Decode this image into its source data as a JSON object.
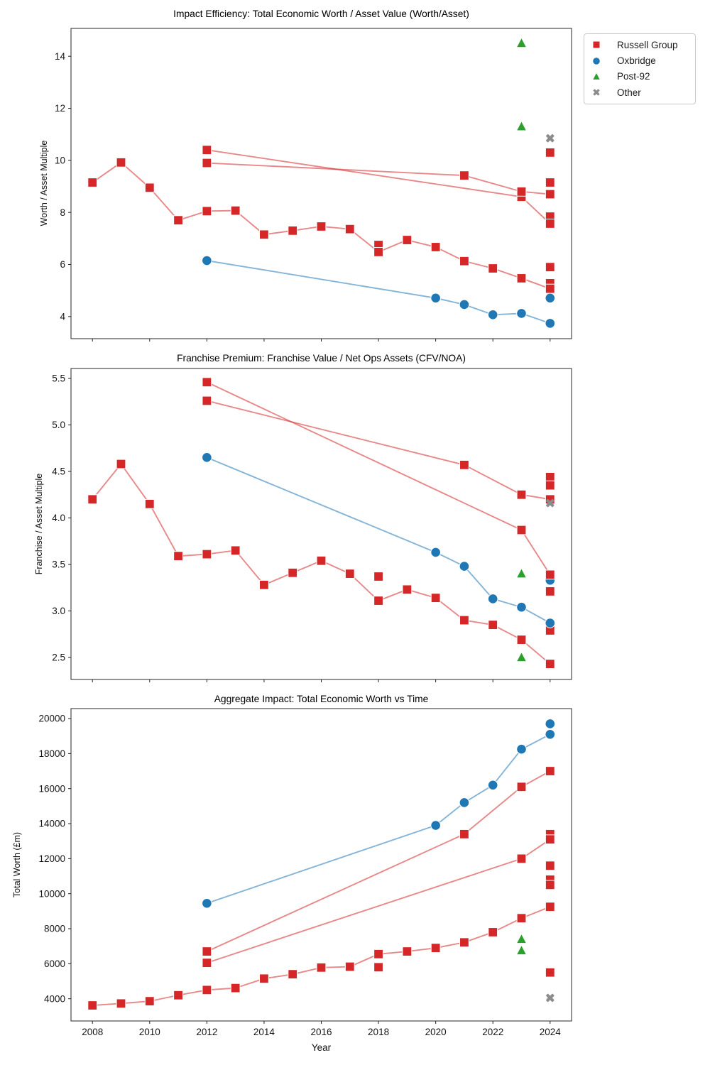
{
  "figure": {
    "background": "#ffffff"
  },
  "legend": {
    "position": "outside-top-right",
    "items": [
      {
        "label": "Russell Group",
        "marker": "square",
        "color": "#d62728"
      },
      {
        "label": "Oxbridge",
        "marker": "circle",
        "color": "#1f77b4"
      },
      {
        "label": "Post-92",
        "marker": "triangle",
        "color": "#2ca02c"
      },
      {
        "label": "Other",
        "marker": "x",
        "color": "#8c8c8c"
      }
    ]
  },
  "chart_data": [
    {
      "id": "worth-asset-multiple",
      "type": "line",
      "title": "Impact Efficiency: Total Economic Worth / Asset Value (Worth/Asset)",
      "xlabel": "",
      "ylabel": "Worth / Asset Multiple",
      "grid": false,
      "xlim": [
        2007.25,
        2024.75
      ],
      "ylim": [
        3.15,
        15.07
      ],
      "xticks": [
        2008,
        2010,
        2012,
        2014,
        2016,
        2018,
        2020,
        2022,
        2024
      ],
      "xtick_labels": [],
      "ytick_values": [
        4,
        6,
        8,
        10,
        12,
        14
      ],
      "ytick_labels": [
        "4",
        "6",
        "8",
        "10",
        "12",
        "14"
      ],
      "series": [
        {
          "name": "russell-group-a",
          "group": "Russell Group",
          "marker": "square",
          "color": "#d62728",
          "line": true,
          "line_color": "rgba(214,39,40,0.55)",
          "marker_z": 2,
          "x": [
            2008,
            2009,
            2010,
            2011,
            2012,
            2013,
            2014,
            2015,
            2016,
            2017,
            2018,
            2019,
            2020,
            2021,
            2022,
            2023,
            2024
          ],
          "y": [
            9.15,
            9.92,
            8.95,
            7.7,
            8.05,
            8.07,
            7.15,
            7.3,
            7.46,
            7.36,
            6.48,
            6.94,
            6.67,
            6.13,
            5.85,
            5.47,
            5.07
          ]
        },
        {
          "name": "russell-group-b",
          "group": "Russell Group",
          "marker": "square",
          "color": "#d62728",
          "line": true,
          "line_color": "rgba(214,39,40,0.55)",
          "marker_z": 2,
          "x": [
            2012,
            2023,
            2024
          ],
          "y": [
            10.4,
            8.6,
            7.57
          ]
        },
        {
          "name": "russell-group-c",
          "group": "Russell Group",
          "marker": "square",
          "color": "#d62728",
          "line": true,
          "line_color": "rgba(214,39,40,0.55)",
          "marker_z": 2,
          "x": [
            2012,
            2021,
            2023,
            2024
          ],
          "y": [
            9.9,
            9.42,
            8.8,
            8.7
          ]
        },
        {
          "name": "oxbridge-line",
          "group": "Oxbridge",
          "marker": "circle",
          "color": "#1f77b4",
          "line": true,
          "line_color": "rgba(31,119,180,0.55)",
          "marker_z": 2,
          "x": [
            2012,
            2020,
            2021,
            2022,
            2023,
            2024
          ],
          "y": [
            6.15,
            4.71,
            4.46,
            4.07,
            4.12,
            3.74
          ]
        },
        {
          "name": "russell-group-points",
          "group": "Russell Group",
          "marker": "square",
          "color": "#d62728",
          "line": false,
          "marker_z": 1,
          "x": [
            2018,
            2024,
            2024,
            2024,
            2024,
            2024
          ],
          "y": [
            6.75,
            10.3,
            9.15,
            7.84,
            5.9,
            5.28
          ]
        },
        {
          "name": "oxbridge-points",
          "group": "Oxbridge",
          "marker": "circle",
          "color": "#1f77b4",
          "line": false,
          "marker_z": 1,
          "x": [
            2024
          ],
          "y": [
            4.71
          ]
        },
        {
          "name": "post92-points",
          "group": "Post-92",
          "marker": "triangle",
          "color": "#2ca02c",
          "line": false,
          "marker_z": 3,
          "x": [
            2023,
            2023
          ],
          "y": [
            14.5,
            11.3
          ]
        },
        {
          "name": "other-points",
          "group": "Other",
          "marker": "x",
          "color": "#8c8c8c",
          "line": false,
          "marker_z": 4,
          "x": [
            2024
          ],
          "y": [
            10.85
          ]
        }
      ]
    },
    {
      "id": "franchise-asset-multiple",
      "type": "line",
      "title": "Franchise Premium: Franchise Value / Net Ops Assets (CFV/NOA)",
      "xlabel": "",
      "ylabel": "Franchise / Asset Multiple",
      "grid": false,
      "xlim": [
        2007.25,
        2024.75
      ],
      "ylim": [
        2.263,
        5.607
      ],
      "xticks": [
        2008,
        2010,
        2012,
        2014,
        2016,
        2018,
        2020,
        2022,
        2024
      ],
      "xtick_labels": [],
      "ytick_values": [
        2.5,
        3.0,
        3.5,
        4.0,
        4.5,
        5.0,
        5.5
      ],
      "ytick_labels": [
        "2.5",
        "3.0",
        "3.5",
        "4.0",
        "4.5",
        "5.0",
        "5.5"
      ],
      "series": [
        {
          "name": "russell-group-a",
          "group": "Russell Group",
          "marker": "square",
          "color": "#d62728",
          "line": true,
          "line_color": "rgba(214,39,40,0.55)",
          "marker_z": 2,
          "x": [
            2008,
            2009,
            2010,
            2011,
            2012,
            2013,
            2014,
            2015,
            2016,
            2017,
            2018,
            2019,
            2020,
            2021,
            2022,
            2023,
            2024
          ],
          "y": [
            4.2,
            4.58,
            4.15,
            3.59,
            3.61,
            3.65,
            3.28,
            3.41,
            3.54,
            3.4,
            3.11,
            3.23,
            3.14,
            2.9,
            2.85,
            2.69,
            2.43
          ]
        },
        {
          "name": "russell-group-b",
          "group": "Russell Group",
          "marker": "square",
          "color": "#d62728",
          "line": true,
          "line_color": "rgba(214,39,40,0.55)",
          "marker_z": 2,
          "x": [
            2012,
            2023,
            2024
          ],
          "y": [
            5.46,
            3.87,
            3.39
          ]
        },
        {
          "name": "russell-group-c",
          "group": "Russell Group",
          "marker": "square",
          "color": "#d62728",
          "line": true,
          "line_color": "rgba(214,39,40,0.55)",
          "marker_z": 2,
          "x": [
            2012,
            2021,
            2023,
            2024
          ],
          "y": [
            5.26,
            4.57,
            4.25,
            4.2
          ]
        },
        {
          "name": "oxbridge-line",
          "group": "Oxbridge",
          "marker": "circle",
          "color": "#1f77b4",
          "line": true,
          "line_color": "rgba(31,119,180,0.55)",
          "marker_z": 2,
          "x": [
            2012,
            2020,
            2021,
            2022,
            2023,
            2024
          ],
          "y": [
            4.65,
            3.63,
            3.48,
            3.13,
            3.04,
            2.87
          ]
        },
        {
          "name": "russell-group-points",
          "group": "Russell Group",
          "marker": "square",
          "color": "#d62728",
          "line": false,
          "marker_z": 1,
          "x": [
            2018,
            2024,
            2024,
            2024,
            2024
          ],
          "y": [
            3.37,
            4.44,
            4.35,
            3.21,
            2.79
          ]
        },
        {
          "name": "oxbridge-points",
          "group": "Oxbridge",
          "marker": "circle",
          "color": "#1f77b4",
          "line": false,
          "marker_z": 1,
          "x": [
            2024
          ],
          "y": [
            3.33
          ]
        },
        {
          "name": "post92-points",
          "group": "Post-92",
          "marker": "triangle",
          "color": "#2ca02c",
          "line": false,
          "marker_z": 3,
          "x": [
            2023,
            2023
          ],
          "y": [
            3.4,
            2.5
          ]
        },
        {
          "name": "other-points",
          "group": "Other",
          "marker": "x",
          "color": "#8c8c8c",
          "line": false,
          "marker_z": 4,
          "x": [
            2024
          ],
          "y": [
            4.16
          ]
        }
      ]
    },
    {
      "id": "total-economic-worth",
      "type": "line",
      "title": "Aggregate Impact: Total Economic Worth vs Time",
      "xlabel": "Year",
      "ylabel": "Total Worth (£m)",
      "grid": false,
      "xlim": [
        2007.25,
        2024.75
      ],
      "ylim": [
        2730,
        20570
      ],
      "xticks": [
        2008,
        2010,
        2012,
        2014,
        2016,
        2018,
        2020,
        2022,
        2024
      ],
      "xtick_labels": [
        "2008",
        "2010",
        "2012",
        "2014",
        "2016",
        "2018",
        "2020",
        "2022",
        "2024"
      ],
      "ytick_values": [
        4000,
        6000,
        8000,
        10000,
        12000,
        14000,
        16000,
        18000,
        20000
      ],
      "ytick_labels": [
        "4000",
        "6000",
        "8000",
        "10000",
        "12000",
        "14000",
        "16000",
        "18000",
        "20000"
      ],
      "series": [
        {
          "name": "russell-group-a",
          "group": "Russell Group",
          "marker": "square",
          "color": "#d62728",
          "line": true,
          "line_color": "rgba(214,39,40,0.55)",
          "marker_z": 2,
          "x": [
            2008,
            2009,
            2010,
            2011,
            2012,
            2013,
            2014,
            2015,
            2016,
            2017,
            2018,
            2019,
            2020,
            2021,
            2022,
            2023,
            2024
          ],
          "y": [
            3620,
            3730,
            3860,
            4200,
            4500,
            4610,
            5150,
            5400,
            5780,
            5830,
            6550,
            6700,
            6900,
            7220,
            7800,
            8600,
            9250
          ]
        },
        {
          "name": "russell-group-b",
          "group": "Russell Group",
          "marker": "square",
          "color": "#d62728",
          "line": true,
          "line_color": "rgba(214,39,40,0.55)",
          "marker_z": 2,
          "x": [
            2012,
            2023,
            2024
          ],
          "y": [
            6050,
            12000,
            13100
          ]
        },
        {
          "name": "russell-group-c",
          "group": "Russell Group",
          "marker": "square",
          "color": "#d62728",
          "line": true,
          "line_color": "rgba(214,39,40,0.55)",
          "marker_z": 2,
          "x": [
            2012,
            2021,
            2023,
            2024
          ],
          "y": [
            6700,
            13400,
            16100,
            17000
          ]
        },
        {
          "name": "oxbridge-line",
          "group": "Oxbridge",
          "marker": "circle",
          "color": "#1f77b4",
          "line": true,
          "line_color": "rgba(31,119,180,0.55)",
          "marker_z": 2,
          "x": [
            2012,
            2020,
            2021,
            2022,
            2023,
            2024
          ],
          "y": [
            9450,
            13900,
            15200,
            16200,
            18250,
            19100
          ]
        },
        {
          "name": "russell-group-points",
          "group": "Russell Group",
          "marker": "square",
          "color": "#d62728",
          "line": false,
          "marker_z": 1,
          "x": [
            2018,
            2024,
            2024,
            2024,
            2024,
            2024
          ],
          "y": [
            5800,
            13400,
            11600,
            10800,
            10500,
            5500
          ]
        },
        {
          "name": "oxbridge-points",
          "group": "Oxbridge",
          "marker": "circle",
          "color": "#1f77b4",
          "line": false,
          "marker_z": 1,
          "x": [
            2024
          ],
          "y": [
            19700
          ]
        },
        {
          "name": "post92-points",
          "group": "Post-92",
          "marker": "triangle",
          "color": "#2ca02c",
          "line": false,
          "marker_z": 3,
          "x": [
            2023,
            2023
          ],
          "y": [
            7400,
            6750
          ]
        },
        {
          "name": "other-points",
          "group": "Other",
          "marker": "x",
          "color": "#8c8c8c",
          "line": false,
          "marker_z": 4,
          "x": [
            2024
          ],
          "y": [
            4050
          ]
        }
      ]
    }
  ]
}
